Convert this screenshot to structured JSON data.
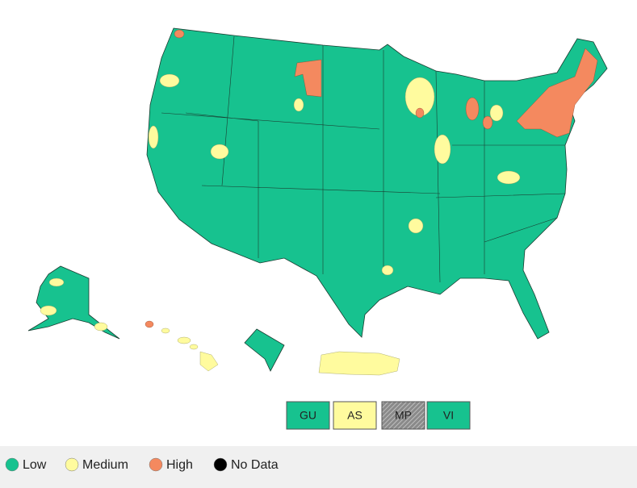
{
  "territories": [
    {
      "label": "GU",
      "color": "#17c28f"
    },
    {
      "label": "AS",
      "color": "#fffb9e"
    },
    {
      "label": "MP",
      "color": "#9a9a9a"
    },
    {
      "label": "VI",
      "color": "#17c28f"
    }
  ],
  "legend": [
    {
      "label": "Low",
      "color": "#17c28f"
    },
    {
      "label": "Medium",
      "color": "#fffb9e"
    },
    {
      "label": "High",
      "color": "#f4895f"
    },
    {
      "label": "No Data",
      "color": "#000000"
    }
  ]
}
